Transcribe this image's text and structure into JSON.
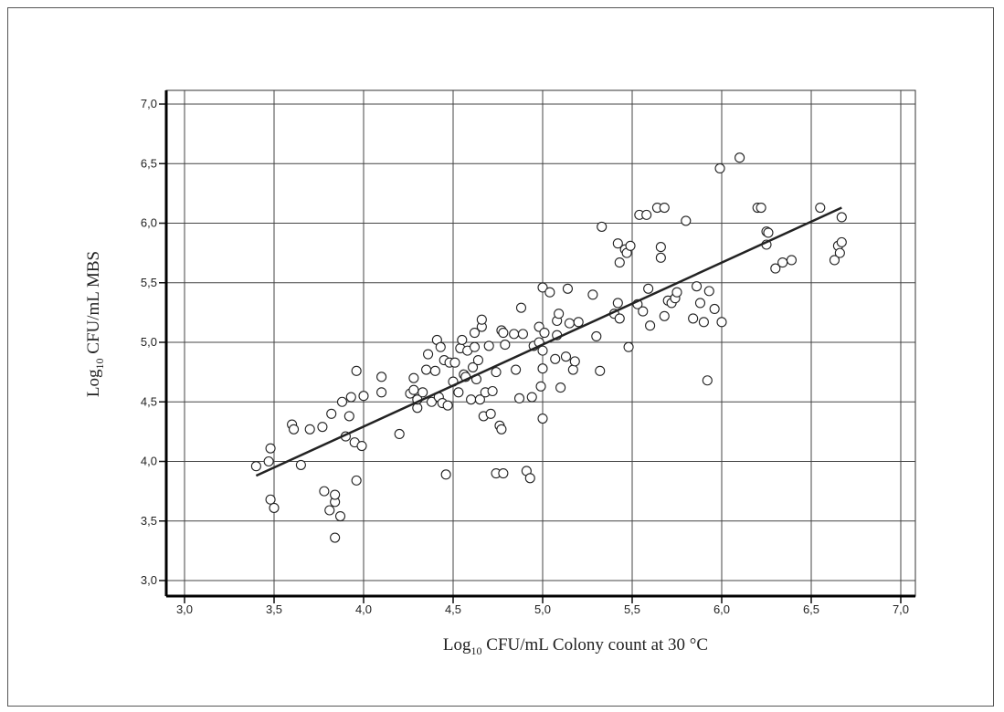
{
  "chart_data": {
    "type": "scatter",
    "title": "",
    "xlabel": {
      "prefix": "Log",
      "subscript": "10",
      "rest": " CFU/mL  Colony count at 30 °C"
    },
    "ylabel": {
      "prefix": "Log",
      "subscript": "10",
      "rest": " CFU/mL  MBS"
    },
    "xlim": [
      3.0,
      7.0
    ],
    "ylim": [
      3.0,
      7.0
    ],
    "x_ticks": [
      "3,0",
      "3,5",
      "4,0",
      "4,5",
      "5,0",
      "5,5",
      "6,0",
      "6,5",
      "7,0"
    ],
    "y_ticks": [
      "3,0",
      "3,5",
      "4,0",
      "4,5",
      "5,0",
      "5,5",
      "6,0",
      "6,5",
      "7,0"
    ],
    "grid": true,
    "trend_line": {
      "x": [
        3.4,
        6.67
      ],
      "y": [
        3.88,
        6.13
      ]
    },
    "points": [
      [
        3.4,
        3.96
      ],
      [
        3.47,
        4.0
      ],
      [
        3.48,
        4.11
      ],
      [
        3.48,
        3.68
      ],
      [
        3.5,
        3.61
      ],
      [
        3.6,
        4.31
      ],
      [
        3.61,
        4.27
      ],
      [
        3.65,
        3.97
      ],
      [
        3.7,
        4.27
      ],
      [
        3.77,
        4.29
      ],
      [
        3.78,
        3.75
      ],
      [
        3.81,
        3.59
      ],
      [
        3.82,
        4.4
      ],
      [
        3.84,
        3.66
      ],
      [
        3.84,
        3.72
      ],
      [
        3.84,
        3.36
      ],
      [
        3.87,
        3.54
      ],
      [
        3.88,
        4.5
      ],
      [
        3.9,
        4.21
      ],
      [
        3.92,
        4.38
      ],
      [
        3.93,
        4.54
      ],
      [
        3.95,
        4.16
      ],
      [
        3.96,
        3.84
      ],
      [
        3.96,
        4.76
      ],
      [
        3.99,
        4.13
      ],
      [
        4.0,
        4.55
      ],
      [
        4.2,
        4.23
      ],
      [
        4.1,
        4.58
      ],
      [
        4.1,
        4.71
      ],
      [
        4.26,
        4.57
      ],
      [
        4.28,
        4.6
      ],
      [
        4.28,
        4.7
      ],
      [
        4.3,
        4.45
      ],
      [
        4.3,
        4.52
      ],
      [
        4.33,
        4.58
      ],
      [
        4.35,
        4.77
      ],
      [
        4.36,
        4.9
      ],
      [
        4.38,
        4.5
      ],
      [
        4.4,
        4.76
      ],
      [
        4.41,
        5.02
      ],
      [
        4.42,
        4.54
      ],
      [
        4.43,
        4.96
      ],
      [
        4.44,
        4.49
      ],
      [
        4.45,
        4.85
      ],
      [
        4.46,
        3.89
      ],
      [
        4.47,
        4.47
      ],
      [
        4.48,
        4.83
      ],
      [
        4.5,
        4.67
      ],
      [
        4.51,
        4.83
      ],
      [
        4.53,
        4.58
      ],
      [
        4.54,
        4.95
      ],
      [
        4.55,
        5.02
      ],
      [
        4.56,
        4.73
      ],
      [
        4.57,
        4.71
      ],
      [
        4.58,
        4.93
      ],
      [
        4.6,
        4.52
      ],
      [
        4.61,
        4.79
      ],
      [
        4.62,
        5.08
      ],
      [
        4.62,
        4.96
      ],
      [
        4.63,
        4.69
      ],
      [
        4.64,
        4.85
      ],
      [
        4.65,
        4.52
      ],
      [
        4.66,
        5.13
      ],
      [
        4.66,
        5.19
      ],
      [
        4.67,
        4.38
      ],
      [
        4.68,
        4.58
      ],
      [
        4.7,
        4.97
      ],
      [
        4.71,
        4.4
      ],
      [
        4.72,
        4.59
      ],
      [
        4.74,
        4.75
      ],
      [
        4.74,
        3.9
      ],
      [
        4.76,
        4.3
      ],
      [
        4.77,
        4.27
      ],
      [
        4.77,
        5.1
      ],
      [
        4.78,
        5.08
      ],
      [
        4.78,
        3.9
      ],
      [
        4.79,
        4.98
      ],
      [
        4.84,
        5.07
      ],
      [
        4.85,
        4.77
      ],
      [
        4.87,
        4.53
      ],
      [
        4.88,
        5.29
      ],
      [
        4.89,
        5.07
      ],
      [
        4.91,
        3.92
      ],
      [
        4.93,
        3.86
      ],
      [
        4.94,
        4.54
      ],
      [
        4.95,
        4.97
      ],
      [
        4.98,
        5.13
      ],
      [
        4.98,
        5.0
      ],
      [
        4.99,
        4.63
      ],
      [
        5.0,
        4.36
      ],
      [
        5.0,
        4.78
      ],
      [
        5.0,
        4.93
      ],
      [
        5.0,
        5.46
      ],
      [
        5.01,
        5.08
      ],
      [
        5.04,
        5.42
      ],
      [
        5.07,
        4.86
      ],
      [
        5.08,
        5.06
      ],
      [
        5.08,
        5.18
      ],
      [
        5.09,
        5.24
      ],
      [
        5.1,
        4.62
      ],
      [
        5.13,
        4.88
      ],
      [
        5.14,
        5.45
      ],
      [
        5.15,
        5.16
      ],
      [
        5.17,
        4.77
      ],
      [
        5.18,
        4.84
      ],
      [
        5.2,
        5.17
      ],
      [
        5.28,
        5.4
      ],
      [
        5.3,
        5.05
      ],
      [
        5.32,
        4.76
      ],
      [
        5.33,
        5.97
      ],
      [
        5.4,
        5.24
      ],
      [
        5.42,
        5.33
      ],
      [
        5.42,
        5.83
      ],
      [
        5.43,
        5.2
      ],
      [
        5.43,
        5.67
      ],
      [
        5.46,
        5.78
      ],
      [
        5.47,
        5.75
      ],
      [
        5.48,
        4.96
      ],
      [
        5.49,
        5.81
      ],
      [
        5.53,
        5.32
      ],
      [
        5.54,
        6.07
      ],
      [
        5.56,
        5.26
      ],
      [
        5.58,
        6.07
      ],
      [
        5.59,
        5.45
      ],
      [
        5.6,
        5.14
      ],
      [
        5.64,
        6.13
      ],
      [
        5.66,
        5.8
      ],
      [
        5.66,
        5.71
      ],
      [
        5.68,
        6.13
      ],
      [
        5.68,
        5.22
      ],
      [
        5.7,
        5.35
      ],
      [
        5.72,
        5.33
      ],
      [
        5.74,
        5.37
      ],
      [
        5.75,
        5.42
      ],
      [
        5.8,
        6.02
      ],
      [
        5.84,
        5.2
      ],
      [
        5.86,
        5.47
      ],
      [
        5.88,
        5.33
      ],
      [
        5.9,
        5.17
      ],
      [
        5.92,
        4.68
      ],
      [
        5.93,
        5.43
      ],
      [
        5.96,
        5.28
      ],
      [
        5.99,
        6.46
      ],
      [
        6.0,
        5.17
      ],
      [
        6.1,
        6.55
      ],
      [
        6.2,
        6.13
      ],
      [
        6.22,
        6.13
      ],
      [
        6.25,
        5.82
      ],
      [
        6.25,
        5.93
      ],
      [
        6.26,
        5.92
      ],
      [
        6.3,
        5.62
      ],
      [
        6.34,
        5.67
      ],
      [
        6.39,
        5.69
      ],
      [
        6.55,
        6.13
      ],
      [
        6.63,
        5.69
      ],
      [
        6.65,
        5.81
      ],
      [
        6.66,
        5.75
      ],
      [
        6.67,
        5.84
      ],
      [
        6.67,
        6.05
      ]
    ]
  }
}
